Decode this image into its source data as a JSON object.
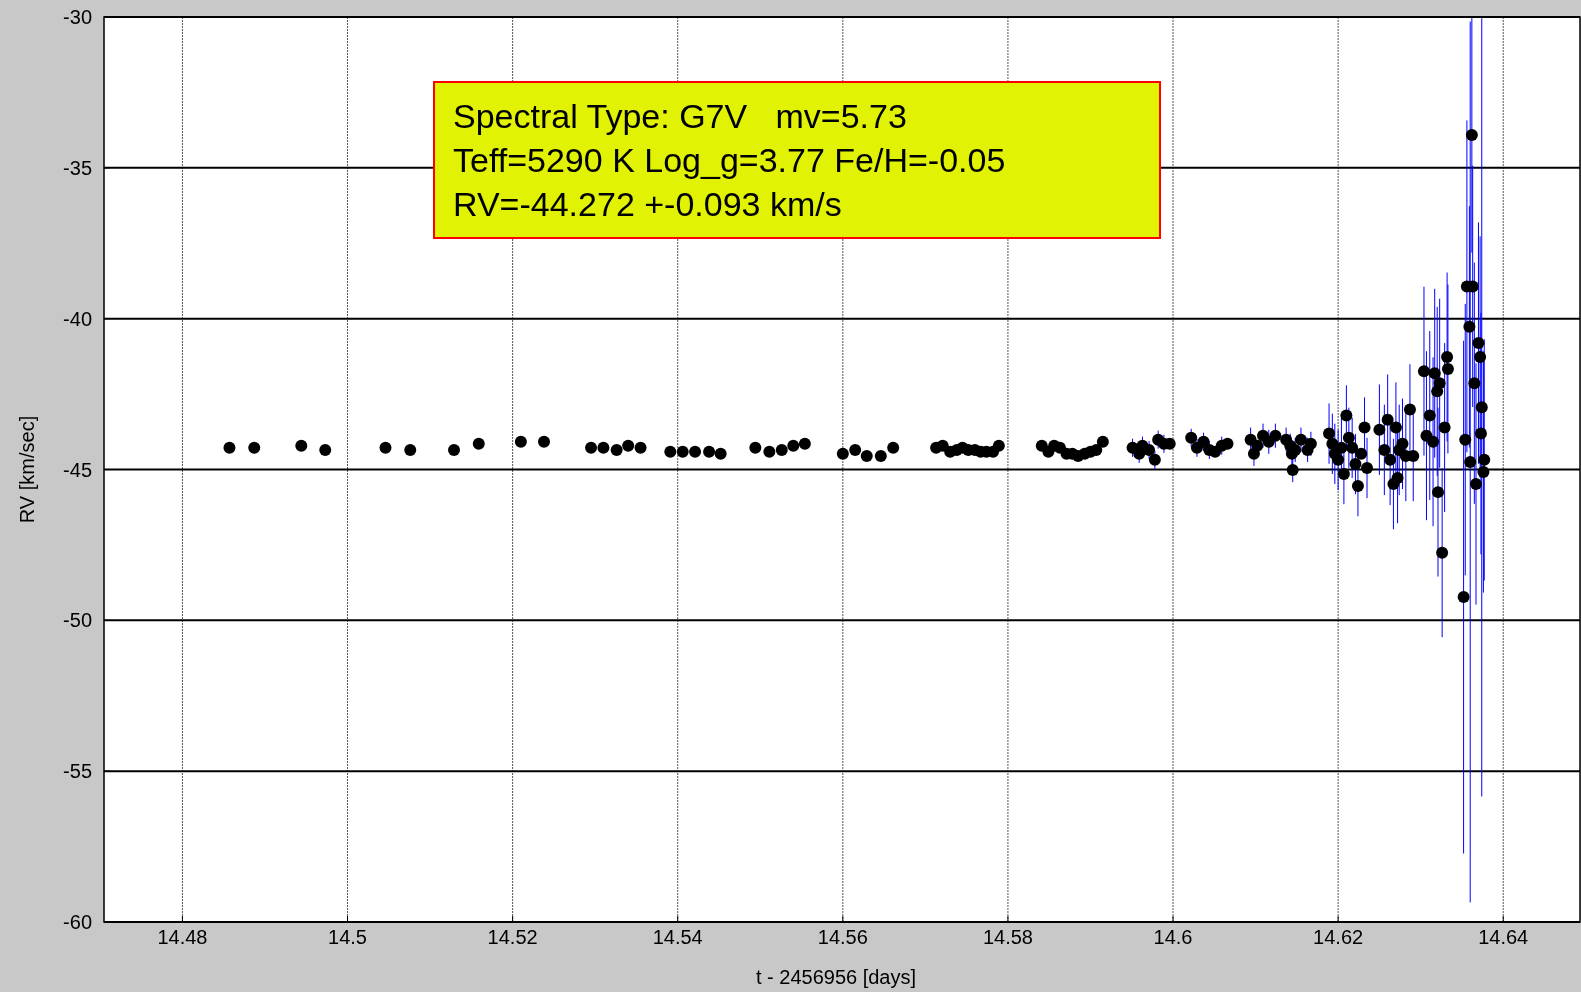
{
  "chart_data": {
    "type": "scatter",
    "xlabel": "t - 2456956 [days]",
    "ylabel": "RV [km/sec]",
    "annotations": [
      "Spectral Type: G7V   mv=5.73",
      "Teff=5290 K Log_g=3.77 Fe/H=-0.05",
      "RV=-44.272 +-0.093 km/s"
    ],
    "xlim": [
      14.4705,
      14.6493
    ],
    "xticks": [
      14.48,
      14.5,
      14.52,
      14.54,
      14.56,
      14.58,
      14.6,
      14.62,
      14.64
    ],
    "ylim": [
      -60,
      -30
    ],
    "yticks": [
      -60,
      -55,
      -50,
      -45,
      -40,
      -35,
      -30
    ],
    "grid": true,
    "marker": "circle",
    "series": [
      {
        "color": "#000000",
        "x": [
          14.4857,
          14.4887,
          14.4944,
          14.4973,
          14.5046,
          14.5076,
          14.5129,
          14.5159,
          14.521,
          14.5238,
          14.5295,
          14.531,
          14.5326,
          14.534,
          14.5355,
          14.5391,
          14.5406,
          14.5421,
          14.5438,
          14.5452,
          14.5494,
          14.5511,
          14.5526,
          14.554,
          14.5554,
          14.56,
          14.5615,
          14.5629,
          14.5646,
          14.5661,
          14.5713,
          14.5721,
          14.573,
          14.5738,
          14.5745,
          14.5752,
          14.576,
          14.5767,
          14.5774,
          14.5782,
          14.5789,
          14.5841,
          14.5849,
          14.5856,
          14.5863,
          14.5871,
          14.5878,
          14.5885,
          14.5893,
          14.59,
          14.5907,
          14.5915,
          14.5951,
          14.5959,
          14.5963,
          14.5971,
          14.5978,
          14.5982,
          14.5989,
          14.5996,
          14.6022,
          14.6029,
          14.6037,
          14.6044,
          14.6051,
          14.6059,
          14.6066,
          14.6094,
          14.6098,
          14.6102,
          14.6109,
          14.6116,
          14.6124,
          14.6137,
          14.6142,
          14.6144,
          14.6145,
          14.6148,
          14.6155,
          14.6163,
          14.6167,
          14.6189,
          14.6193,
          14.6196,
          14.62,
          14.6204,
          14.6207,
          14.621,
          14.6213,
          14.6217,
          14.6221,
          14.6224,
          14.6228,
          14.6232,
          14.6235,
          14.625,
          14.6256,
          14.626,
          14.6263,
          14.6267,
          14.627,
          14.6272,
          14.6274,
          14.6278,
          14.6282,
          14.6287,
          14.6291,
          14.6304,
          14.6307,
          14.6311,
          14.6315,
          14.6317,
          14.632,
          14.6321,
          14.6323,
          14.6326,
          14.6329,
          14.6332,
          14.6333,
          14.6352,
          14.6354,
          14.6356,
          14.6359,
          14.636,
          14.6362,
          14.6363,
          14.6365,
          14.6367,
          14.637,
          14.6372,
          14.6373,
          14.6374,
          14.6376,
          14.6377
        ],
        "values": [
          -44.28,
          -44.28,
          -44.21,
          -44.35,
          -44.28,
          -44.35,
          -44.35,
          -44.15,
          -44.08,
          -44.08,
          -44.28,
          -44.28,
          -44.35,
          -44.21,
          -44.28,
          -44.41,
          -44.41,
          -44.41,
          -44.41,
          -44.48,
          -44.28,
          -44.41,
          -44.35,
          -44.21,
          -44.15,
          -44.48,
          -44.35,
          -44.55,
          -44.55,
          -44.28,
          -44.28,
          -44.21,
          -44.41,
          -44.35,
          -44.28,
          -44.35,
          -44.35,
          -44.41,
          -44.41,
          -44.41,
          -44.21,
          -44.21,
          -44.41,
          -44.21,
          -44.28,
          -44.48,
          -44.48,
          -44.55,
          -44.48,
          -44.41,
          -44.35,
          -44.08,
          -44.28,
          -44.48,
          -44.21,
          -44.35,
          -44.68,
          -44.01,
          -44.15,
          -44.15,
          -43.95,
          -44.28,
          -44.08,
          -44.35,
          -44.41,
          -44.21,
          -44.15,
          -44.01,
          -44.48,
          -44.21,
          -43.88,
          -44.08,
          -43.88,
          -44.01,
          -44.21,
          -44.48,
          -45.02,
          -44.35,
          -44.01,
          -44.35,
          -44.15,
          -43.81,
          -44.15,
          -44.48,
          -44.68,
          -44.28,
          -45.15,
          -43.21,
          -43.95,
          -44.28,
          -44.82,
          -45.55,
          -44.48,
          -43.61,
          -44.95,
          -43.68,
          -44.35,
          -43.35,
          -44.68,
          -45.48,
          -43.61,
          -45.28,
          -44.35,
          -44.15,
          -44.55,
          -43.01,
          -44.55,
          -41.74,
          -43.88,
          -43.21,
          -44.08,
          -41.81,
          -42.41,
          -45.75,
          -42.14,
          -47.76,
          -43.61,
          -41.27,
          -41.67,
          -49.23,
          -44.01,
          -38.93,
          -40.27,
          -44.75,
          -33.91,
          -38.93,
          -42.14,
          -45.48,
          -40.81,
          -41.27,
          -43.81,
          -42.94,
          -45.08,
          -44.68
        ],
        "errors": [
          0.1,
          0.1,
          0.1,
          0.1,
          0.1,
          0.1,
          0.1,
          0.1,
          0.1,
          0.1,
          0.1,
          0.1,
          0.1,
          0.1,
          0.1,
          0.1,
          0.1,
          0.1,
          0.1,
          0.1,
          0.1,
          0.1,
          0.1,
          0.1,
          0.1,
          0.1,
          0.1,
          0.1,
          0.1,
          0.1,
          null,
          null,
          null,
          null,
          null,
          null,
          null,
          null,
          null,
          null,
          null,
          null,
          null,
          null,
          null,
          null,
          null,
          null,
          null,
          null,
          null,
          null,
          0.3,
          0.3,
          0.3,
          0.3,
          0.3,
          0.3,
          0.3,
          null,
          0.3,
          0.3,
          0.3,
          0.3,
          null,
          0.3,
          null,
          0.4,
          0.4,
          null,
          0.4,
          0.4,
          0.4,
          0.4,
          0.4,
          0.4,
          0.4,
          0.4,
          0.4,
          0.4,
          0.4,
          1,
          1,
          1,
          1,
          1,
          1,
          1,
          1,
          1,
          1,
          1,
          null,
          1,
          1,
          1.5,
          1.5,
          1.5,
          1.5,
          1.5,
          1.5,
          1.5,
          1.5,
          1.5,
          1.5,
          1.5,
          1.5,
          2.8,
          2.8,
          2.8,
          2.8,
          2.8,
          2.8,
          2.8,
          2.8,
          2.8,
          2.8,
          2.8,
          2.8,
          8.5,
          4.5,
          5.5,
          4,
          14.6,
          3.9,
          4,
          4,
          4,
          4,
          4,
          4,
          12.9,
          4,
          4
        ]
      }
    ]
  }
}
